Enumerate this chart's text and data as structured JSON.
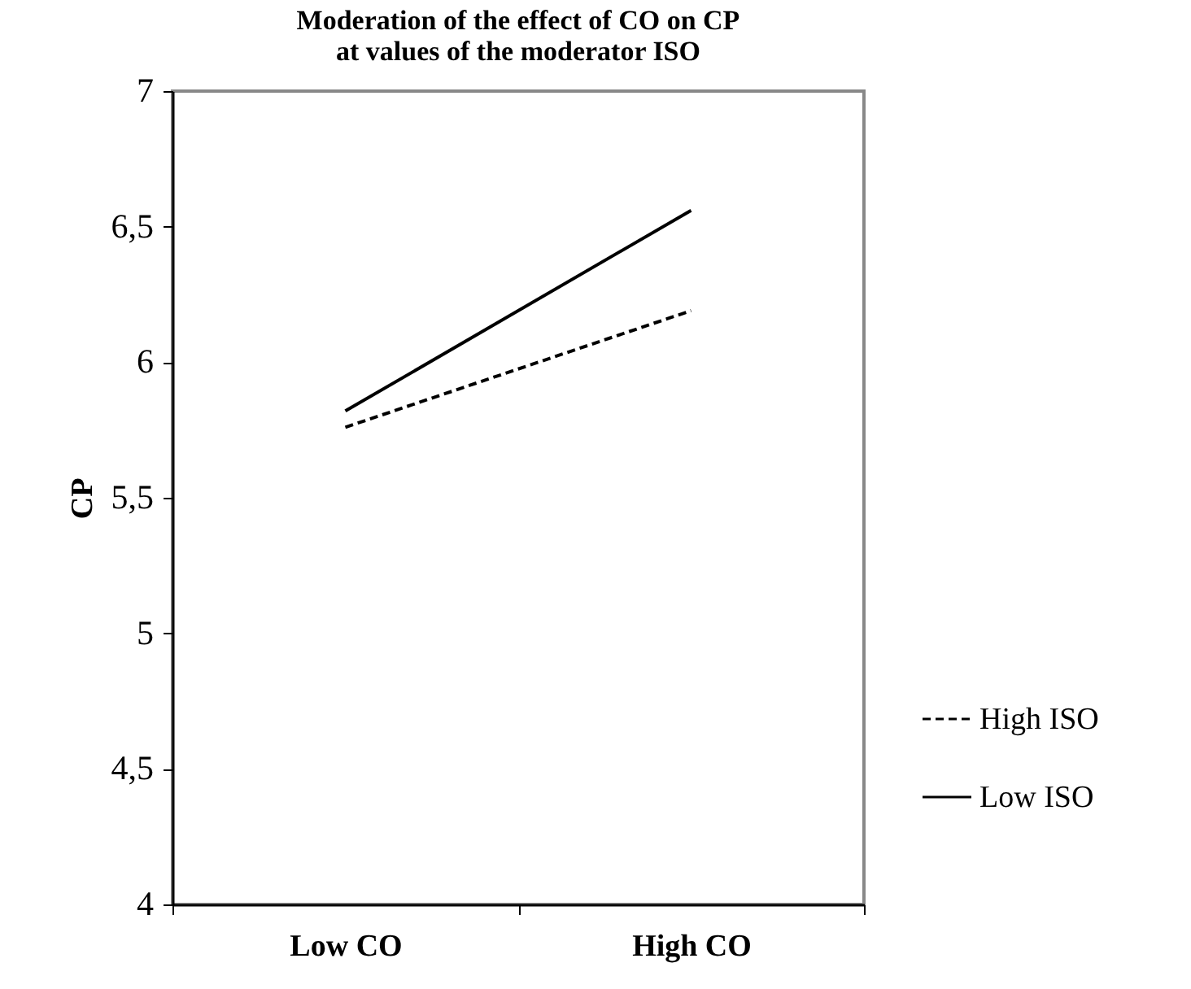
{
  "chart_data": {
    "type": "line",
    "title": "Moderation of the effect of CO on CP\nat values of the moderator ISO",
    "ylabel": "CP",
    "categories": [
      "Low CO",
      "High CO"
    ],
    "series": [
      {
        "name": "High ISO",
        "color": "#000000",
        "line_style": "dashed",
        "values": [
          5.76,
          6.19
        ]
      },
      {
        "name": "Low ISO",
        "color": "#000000",
        "line_style": "solid",
        "values": [
          5.82,
          6.56
        ]
      }
    ],
    "ylim": [
      4,
      7
    ],
    "yticks": [
      4,
      {
        "value": 4.5,
        "label": "4,5"
      },
      5,
      {
        "value": 5.5,
        "label": "5,5"
      },
      6,
      {
        "value": 6.5,
        "label": "6,5"
      },
      7
    ],
    "grid": false,
    "legend": "right",
    "marker": "none"
  }
}
